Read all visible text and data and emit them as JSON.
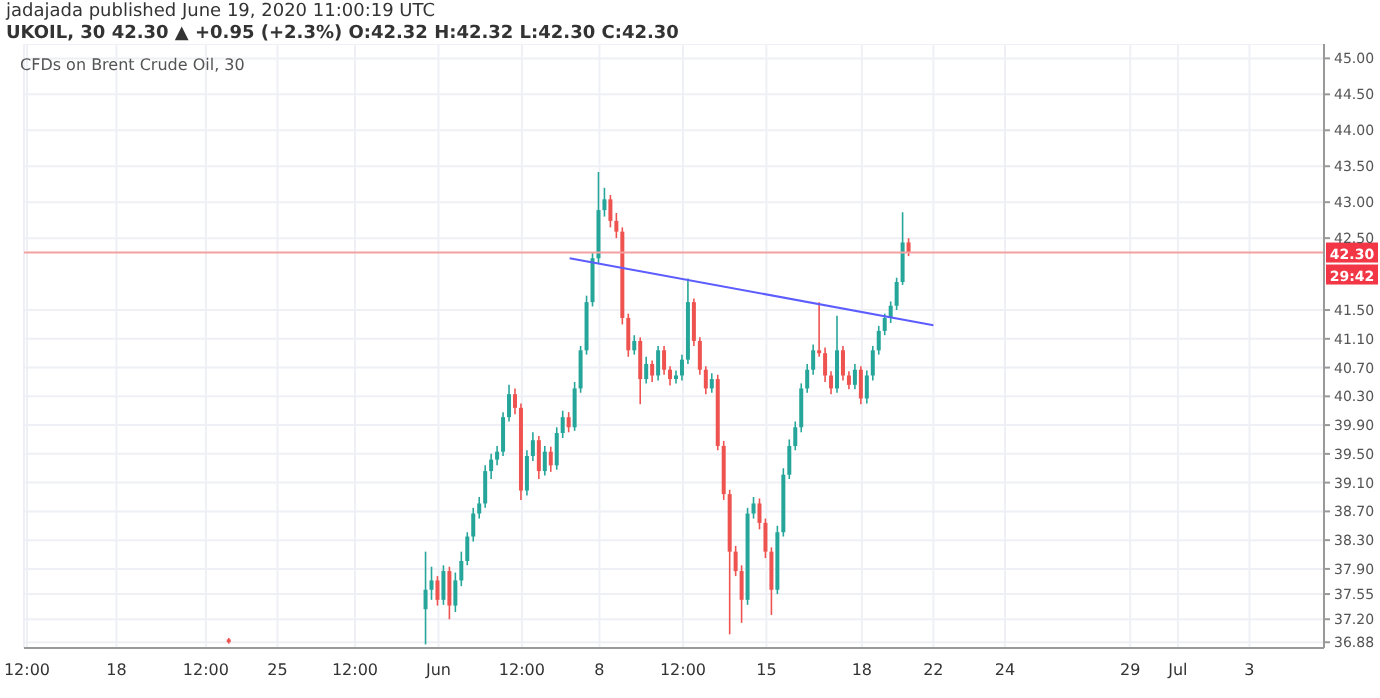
{
  "chart_data": {
    "type": "candlestick",
    "title": "CFDs on Brent Crude Oil, 30",
    "annotations": [
      "jadajada published June 19, 2020 11:00:19 UTC",
      "UKOIL, 30 42.30 ▲ +0.95 (+2.3%) O:42.32 H:42.32 L:42.30 C:42.30",
      "29:42"
    ],
    "categories": [
      "12:00",
      null,
      null,
      null,
      null,
      null,
      null,
      null,
      null,
      null,
      null,
      null,
      null,
      null,
      null,
      "18",
      null,
      null,
      null,
      null,
      null,
      null,
      null,
      null,
      null,
      null,
      null,
      null,
      null,
      null,
      "12:00",
      null,
      null,
      null,
      null,
      null,
      null,
      null,
      null,
      null,
      null,
      null,
      "25",
      null,
      null,
      null,
      null,
      null,
      null,
      null,
      null,
      null,
      null,
      null,
      null,
      "12:00",
      null,
      null,
      null,
      null,
      null,
      null,
      null,
      null,
      null,
      null,
      null,
      null,
      null,
      "Jun",
      null,
      null,
      null,
      null,
      null,
      null,
      null,
      null,
      null,
      null,
      null,
      null,
      null,
      "12:00",
      null,
      null,
      null,
      null,
      null,
      null,
      null,
      null,
      null,
      null,
      null,
      null,
      "8",
      null,
      null,
      null,
      null,
      null,
      null,
      null,
      null,
      null,
      null,
      null,
      null,
      null,
      "12:00",
      null,
      null,
      null,
      null,
      null,
      null,
      null,
      null,
      null,
      null,
      null,
      null,
      null,
      "15",
      null,
      null,
      null,
      null,
      null,
      null,
      null,
      null,
      null,
      null,
      null,
      null,
      null,
      null,
      null,
      "18",
      null,
      null,
      null,
      null,
      null,
      null,
      null,
      null,
      null,
      null,
      null,
      "22",
      null,
      null,
      null,
      null,
      null,
      null,
      null,
      null,
      null,
      null,
      null,
      "24",
      null,
      null,
      null,
      null,
      null,
      null,
      null,
      null,
      null,
      null,
      null,
      null,
      null,
      null,
      null,
      null,
      null,
      null,
      null,
      null,
      "29",
      null,
      null,
      null,
      null,
      null,
      null,
      null,
      "Jul",
      null,
      null,
      null,
      null,
      null,
      null,
      null,
      null,
      null,
      null,
      null,
      "3",
      null,
      null,
      null,
      null,
      null,
      null,
      null,
      null,
      null,
      null,
      null,
      null
    ],
    "ohlc": [
      null,
      null,
      null,
      null,
      null,
      null,
      null,
      null,
      null,
      null,
      null,
      null,
      null,
      null,
      null,
      null,
      null,
      null,
      null,
      null,
      null,
      null,
      null,
      null,
      null,
      null,
      null,
      null,
      null,
      null,
      null,
      null,
      null,
      null,
      [
        36.92,
        36.94,
        36.86,
        36.88
      ],
      null,
      null,
      null,
      null,
      null,
      null,
      null,
      null,
      null,
      null,
      null,
      null,
      null,
      null,
      null,
      null,
      null,
      null,
      null,
      null,
      null,
      null,
      null,
      null,
      null,
      null,
      null,
      null,
      null,
      null,
      null,
      null,
      [
        37.34,
        38.14,
        36.85,
        37.61
      ],
      [
        37.61,
        37.93,
        37.47,
        37.74
      ],
      [
        37.74,
        37.8,
        37.39,
        37.47
      ],
      [
        37.47,
        37.95,
        37.4,
        37.87
      ],
      [
        37.87,
        37.93,
        37.2,
        37.39
      ],
      [
        37.39,
        37.85,
        37.3,
        37.74
      ],
      [
        37.74,
        38.14,
        37.66,
        38.01
      ],
      [
        38.01,
        38.41,
        37.95,
        38.35
      ],
      [
        38.35,
        38.75,
        38.28,
        38.67
      ],
      [
        38.67,
        38.9,
        38.6,
        38.81
      ],
      [
        38.81,
        39.34,
        38.75,
        39.26
      ],
      [
        39.26,
        39.5,
        39.15,
        39.42
      ],
      [
        39.42,
        39.61,
        39.34,
        39.53
      ],
      [
        39.53,
        40.08,
        39.47,
        40.01
      ],
      [
        40.01,
        40.46,
        39.95,
        40.33
      ],
      [
        40.33,
        40.41,
        40.05,
        40.14
      ],
      [
        40.14,
        40.2,
        38.86,
        38.99
      ],
      [
        38.99,
        39.55,
        38.92,
        39.47
      ],
      [
        39.47,
        39.8,
        39.4,
        39.69
      ],
      [
        39.69,
        39.75,
        39.15,
        39.26
      ],
      [
        39.26,
        39.61,
        39.2,
        39.53
      ],
      [
        39.53,
        39.6,
        39.25,
        39.34
      ],
      [
        39.34,
        39.87,
        39.28,
        39.79
      ],
      [
        39.79,
        40.1,
        39.72,
        40.01
      ],
      [
        40.01,
        40.08,
        39.8,
        39.87
      ],
      [
        39.87,
        40.5,
        39.82,
        40.41
      ],
      [
        40.41,
        41.0,
        40.35,
        40.94
      ],
      [
        40.94,
        41.7,
        40.88,
        41.61
      ],
      [
        41.61,
        42.3,
        41.55,
        42.22
      ],
      [
        42.22,
        43.42,
        42.15,
        42.89
      ],
      [
        42.89,
        43.2,
        42.8,
        43.04
      ],
      [
        43.04,
        43.1,
        42.65,
        42.74
      ],
      [
        42.74,
        42.85,
        42.5,
        42.59
      ],
      [
        42.59,
        42.65,
        41.3,
        41.39
      ],
      [
        41.39,
        41.45,
        40.85,
        40.94
      ],
      [
        40.94,
        41.15,
        40.88,
        41.07
      ],
      [
        41.07,
        41.12,
        40.19,
        40.54
      ],
      [
        40.54,
        40.85,
        40.48,
        40.75
      ],
      [
        40.75,
        40.8,
        40.5,
        40.59
      ],
      [
        40.59,
        41.0,
        40.52,
        40.94
      ],
      [
        40.94,
        41.0,
        40.6,
        40.67
      ],
      [
        40.67,
        40.72,
        40.45,
        40.54
      ],
      [
        40.54,
        40.66,
        40.48,
        40.59
      ],
      [
        40.59,
        40.88,
        40.52,
        40.81
      ],
      [
        40.81,
        41.94,
        40.75,
        41.61
      ],
      [
        41.61,
        41.66,
        41.0,
        41.07
      ],
      [
        41.07,
        41.12,
        40.6,
        40.67
      ],
      [
        40.67,
        40.72,
        40.33,
        40.41
      ],
      [
        40.41,
        40.62,
        40.35,
        40.54
      ],
      [
        40.54,
        40.6,
        39.55,
        39.61
      ],
      [
        39.61,
        39.68,
        38.86,
        38.94
      ],
      [
        38.94,
        39.0,
        36.99,
        38.14
      ],
      [
        38.14,
        38.22,
        37.8,
        37.87
      ],
      [
        37.87,
        37.95,
        37.15,
        37.47
      ],
      [
        37.47,
        38.75,
        37.4,
        38.67
      ],
      [
        38.67,
        38.9,
        38.6,
        38.81
      ],
      [
        38.81,
        38.88,
        38.45,
        38.54
      ],
      [
        38.54,
        38.6,
        38.05,
        38.14
      ],
      [
        38.14,
        38.2,
        37.26,
        37.61
      ],
      [
        37.61,
        38.5,
        37.55,
        38.41
      ],
      [
        38.41,
        39.3,
        38.35,
        39.21
      ],
      [
        39.21,
        39.7,
        39.15,
        39.61
      ],
      [
        39.61,
        39.95,
        39.55,
        39.87
      ],
      [
        39.87,
        40.48,
        39.8,
        40.41
      ],
      [
        40.41,
        40.75,
        40.35,
        40.67
      ],
      [
        40.67,
        41.02,
        40.6,
        40.94
      ],
      [
        40.94,
        41.61,
        40.85,
        40.9
      ],
      [
        40.9,
        40.98,
        40.5,
        40.59
      ],
      [
        40.59,
        40.65,
        40.33,
        40.41
      ],
      [
        40.41,
        41.42,
        40.35,
        40.94
      ],
      [
        40.94,
        41.0,
        40.52,
        40.59
      ],
      [
        40.59,
        40.65,
        40.4,
        40.46
      ],
      [
        40.46,
        40.75,
        40.4,
        40.67
      ],
      [
        40.67,
        40.72,
        40.19,
        40.27
      ],
      [
        40.27,
        40.66,
        40.2,
        40.59
      ],
      [
        40.59,
        41.0,
        40.52,
        40.94
      ],
      [
        40.94,
        41.28,
        40.88,
        41.21
      ],
      [
        41.21,
        41.45,
        41.15,
        41.39
      ],
      [
        41.39,
        41.62,
        41.32,
        41.56
      ],
      [
        41.56,
        41.95,
        41.5,
        41.89
      ],
      [
        41.89,
        42.86,
        41.85,
        42.44
      ],
      [
        42.44,
        42.5,
        42.25,
        42.3
      ],
      null,
      null,
      null,
      null,
      null,
      null,
      null,
      null,
      null,
      null,
      null,
      null,
      null,
      null,
      null,
      null,
      null,
      null,
      null,
      null,
      null,
      null,
      null,
      null,
      null,
      null,
      null,
      null,
      null,
      null,
      null,
      null,
      null,
      null,
      null,
      null,
      null,
      null,
      null,
      null,
      null,
      null,
      null,
      null,
      null,
      null,
      null,
      null,
      null,
      null,
      null,
      null,
      null,
      null,
      null,
      null,
      null,
      null,
      null,
      null,
      null,
      null,
      null,
      null,
      null,
      null,
      null,
      null,
      null
    ],
    "colors": [
      null,
      null,
      null,
      null,
      null,
      null,
      null,
      null,
      null,
      null,
      null,
      null,
      null,
      null,
      null,
      null,
      null,
      null,
      null,
      null,
      null,
      null,
      null,
      null,
      null,
      null,
      null,
      null,
      null,
      null,
      null,
      null,
      null,
      null,
      "#ef5350",
      null,
      null,
      null,
      null,
      null,
      null,
      null,
      null,
      null,
      null,
      null,
      null,
      null,
      null,
      null,
      null,
      null,
      null,
      null,
      null,
      null,
      null,
      null,
      null,
      null,
      null,
      null,
      null,
      null,
      null,
      null,
      null,
      "#26a69a",
      "#26a69a",
      "#ef5350",
      "#26a69a",
      "#ef5350",
      "#26a69a",
      "#26a69a",
      "#26a69a",
      "#26a69a",
      "#26a69a",
      "#26a69a",
      "#26a69a",
      "#26a69a",
      "#26a69a",
      "#26a69a",
      "#ef5350",
      "#ef5350",
      "#26a69a",
      "#26a69a",
      "#ef5350",
      "#26a69a",
      "#ef5350",
      "#26a69a",
      "#26a69a",
      "#ef5350",
      "#26a69a",
      "#26a69a",
      "#26a69a",
      "#26a69a",
      "#26a69a",
      "#26a69a",
      "#ef5350",
      "#ef5350",
      "#ef5350",
      "#ef5350",
      "#26a69a",
      "#ef5350",
      "#26a69a",
      "#ef5350",
      "#26a69a",
      "#ef5350",
      "#ef5350",
      "#26a69a",
      "#26a69a",
      "#26a69a",
      "#ef5350",
      "#ef5350",
      "#ef5350",
      "#26a69a",
      "#ef5350",
      "#ef5350",
      "#ef5350",
      "#ef5350",
      "#ef5350",
      "#26a69a",
      "#26a69a",
      "#ef5350",
      "#ef5350",
      "#ef5350",
      "#26a69a",
      "#26a69a",
      "#26a69a",
      "#26a69a",
      "#26a69a",
      "#26a69a",
      "#26a69a",
      "#ef5350",
      "#ef5350",
      "#ef5350",
      "#26a69a",
      "#ef5350",
      "#ef5350",
      "#26a69a",
      "#ef5350",
      "#26a69a",
      "#26a69a",
      "#26a69a",
      "#26a69a",
      "#26a69a",
      "#26a69a",
      "#26a69a",
      "#ef5350",
      null,
      null,
      null,
      null,
      null,
      null,
      null,
      null,
      null,
      null,
      null,
      null,
      null,
      null,
      null,
      null,
      null,
      null,
      null,
      null,
      null,
      null,
      null,
      null,
      null,
      null,
      null,
      null,
      null,
      null,
      null,
      null,
      null,
      null,
      null,
      null,
      null,
      null,
      null,
      null,
      null,
      null,
      null,
      null,
      null,
      null,
      null,
      null,
      null,
      null,
      null,
      null,
      null,
      null,
      null,
      null,
      null,
      null,
      null,
      null,
      null,
      null,
      null,
      null,
      null,
      null,
      null,
      null,
      null
    ],
    "series": [
      {
        "type": "line",
        "color": "#5c5cff",
        "values": [
          null,
          null,
          null,
          null,
          null,
          null,
          null,
          null,
          null,
          null,
          null,
          null,
          null,
          null,
          null,
          null,
          null,
          null,
          null,
          null,
          null,
          null,
          null,
          null,
          null,
          null,
          null,
          null,
          null,
          null,
          null,
          null,
          null,
          null,
          null,
          null,
          null,
          null,
          null,
          null,
          null,
          null,
          null,
          null,
          null,
          null,
          null,
          null,
          null,
          null,
          null,
          null,
          null,
          null,
          null,
          null,
          null,
          null,
          null,
          null,
          null,
          null,
          null,
          null,
          null,
          null,
          null,
          null,
          null,
          null,
          null,
          null,
          null,
          null,
          null,
          null,
          null,
          null,
          null,
          null,
          null,
          null,
          null,
          null,
          null,
          null,
          null,
          null,
          null,
          null,
          null,
          42.22,
          null,
          null,
          null,
          null,
          null,
          null,
          null,
          null,
          null,
          null,
          null,
          null,
          null,
          null,
          null,
          null,
          null,
          null,
          null,
          null,
          null,
          null,
          null,
          null,
          null,
          null,
          null,
          null,
          null,
          null,
          null,
          null,
          null,
          null,
          null,
          null,
          null,
          null,
          null,
          null,
          null,
          null,
          null,
          null,
          null,
          null,
          null,
          null,
          null,
          null,
          null,
          null,
          null,
          null,
          null,
          null,
          null,
          null,
          null,
          null,
          41.29,
          null,
          null,
          null,
          null,
          null,
          null,
          null,
          null,
          null,
          null,
          null,
          null,
          null,
          null,
          null,
          null,
          null,
          null,
          null,
          null,
          null,
          null,
          null,
          null,
          null,
          null,
          null,
          null,
          null,
          null,
          null,
          null,
          null,
          null,
          null,
          null,
          null,
          null,
          null,
          null,
          null,
          null,
          null,
          null,
          null,
          null,
          null,
          null,
          null,
          null,
          null,
          null,
          null,
          null,
          null,
          null,
          null,
          null,
          null,
          null,
          null,
          null,
          null,
          null,
          null
        ]
      }
    ],
    "ylim": [
      36.8,
      45.2
    ],
    "yticks": [
      {
        "value": 36.88,
        "label": "36.88"
      },
      {
        "value": 37.2,
        "label": "37.20"
      },
      {
        "value": 37.55,
        "label": "37.55"
      },
      {
        "value": 37.9,
        "label": "37.90"
      },
      {
        "value": 38.3,
        "label": "38.30"
      },
      {
        "value": 38.7,
        "label": "38.70"
      },
      {
        "value": 39.1,
        "label": "39.10"
      },
      {
        "value": 39.5,
        "label": "39.50"
      },
      {
        "value": 39.9,
        "label": "39.90"
      },
      {
        "value": 40.3,
        "label": "40.30"
      },
      {
        "value": 40.7,
        "label": "40.70"
      },
      {
        "value": 41.1,
        "label": "41.10"
      },
      {
        "value": 41.5,
        "label": "41.50"
      },
      {
        "value": 42.5,
        "label": "42.50"
      },
      {
        "value": 43,
        "label": "43.00"
      },
      {
        "value": 43.5,
        "label": "43.50"
      },
      {
        "value": 44,
        "label": "44.00"
      },
      {
        "value": 44.5,
        "label": "44.50"
      },
      {
        "value": 45,
        "label": "45.00"
      }
    ],
    "ref_lines": [
      {
        "axis": "y",
        "value": 42.3,
        "label": "42.30",
        "color": "#f4a0a0"
      }
    ],
    "grid": true
  }
}
